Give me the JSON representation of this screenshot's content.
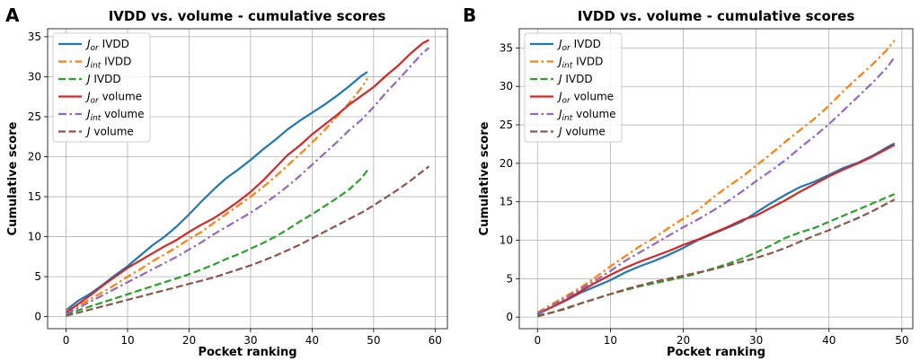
{
  "figure": {
    "panels": [
      "A",
      "B"
    ]
  },
  "chart_data": [
    {
      "panel": "A",
      "type": "line",
      "title": "IVDD vs. volume - cumulative scores",
      "xlabel": "Pocket ranking",
      "ylabel": "Cumulative score",
      "xlim": [
        -3,
        62
      ],
      "ylim": [
        -1.5,
        36
      ],
      "xticks": [
        0,
        10,
        20,
        30,
        40,
        50,
        60
      ],
      "yticks": [
        0,
        5,
        10,
        15,
        20,
        25,
        30,
        35
      ],
      "grid": true,
      "legend_position": "top-left",
      "series": [
        {
          "name": "J_or IVDD",
          "label_main": "J",
          "label_sub": "or",
          "label_rest": " IVDD",
          "color": "#1f77b4",
          "dash": "solid",
          "x": [
            0,
            2,
            4,
            6,
            8,
            10,
            12,
            14,
            16,
            18,
            20,
            22,
            24,
            26,
            28,
            30,
            32,
            34,
            36,
            38,
            40,
            42,
            44,
            46,
            48,
            49
          ],
          "y": [
            0.8,
            2.0,
            2.9,
            4.0,
            5.2,
            6.3,
            7.6,
            8.9,
            10.0,
            11.3,
            12.8,
            14.4,
            15.9,
            17.3,
            18.4,
            19.6,
            20.9,
            22.1,
            23.4,
            24.5,
            25.5,
            26.5,
            27.6,
            28.8,
            30.1,
            30.6
          ]
        },
        {
          "name": "J_int IVDD",
          "label_main": "J",
          "label_sub": "int",
          "label_rest": " IVDD",
          "color": "#ff7f0e",
          "dash": "dashdot",
          "x": [
            0,
            2,
            4,
            6,
            8,
            10,
            12,
            14,
            16,
            18,
            20,
            22,
            24,
            26,
            28,
            30,
            32,
            34,
            36,
            38,
            40,
            42,
            44,
            46,
            48,
            49
          ],
          "y": [
            0.7,
            1.4,
            2.2,
            3.1,
            4.0,
            5.0,
            5.9,
            6.9,
            7.8,
            8.7,
            9.7,
            10.6,
            11.7,
            12.8,
            13.9,
            15.0,
            16.2,
            17.5,
            18.9,
            20.3,
            21.8,
            23.3,
            25.0,
            26.7,
            28.6,
            29.8
          ]
        },
        {
          "name": "J IVDD",
          "label_main": "J",
          "label_sub": "",
          "label_rest": " IVDD",
          "color": "#2ca02c",
          "dash": "dashed",
          "x": [
            0,
            2,
            4,
            6,
            8,
            10,
            12,
            14,
            16,
            18,
            20,
            22,
            24,
            26,
            28,
            30,
            32,
            34,
            36,
            38,
            40,
            42,
            44,
            46,
            48,
            49
          ],
          "y": [
            0.3,
            0.8,
            1.3,
            1.8,
            2.3,
            2.8,
            3.3,
            3.8,
            4.3,
            4.8,
            5.3,
            5.9,
            6.5,
            7.2,
            7.8,
            8.5,
            9.2,
            10.0,
            10.9,
            11.9,
            12.8,
            13.8,
            14.8,
            15.9,
            17.3,
            18.3
          ]
        },
        {
          "name": "J_or volume",
          "label_main": "J",
          "label_sub": "or",
          "label_rest": " volume",
          "color": "#d62728",
          "dash": "solid",
          "x": [
            0,
            2,
            4,
            6,
            8,
            10,
            12,
            14,
            16,
            18,
            20,
            22,
            24,
            26,
            28,
            30,
            32,
            34,
            36,
            38,
            40,
            42,
            44,
            46,
            48,
            50,
            52,
            54,
            56,
            58,
            59
          ],
          "y": [
            0.5,
            1.6,
            2.7,
            3.9,
            5.0,
            6.1,
            7.0,
            7.9,
            8.8,
            9.6,
            10.6,
            11.5,
            12.3,
            13.3,
            14.4,
            15.6,
            17.0,
            18.6,
            20.2,
            21.4,
            22.8,
            24.0,
            25.2,
            26.5,
            27.6,
            28.7,
            30.1,
            31.4,
            32.9,
            34.2,
            34.6
          ]
        },
        {
          "name": "J_int volume",
          "label_main": "J",
          "label_sub": "int",
          "label_rest": " volume",
          "color": "#9467bd",
          "dash": "dashdot",
          "x": [
            0,
            2,
            4,
            6,
            8,
            10,
            12,
            14,
            16,
            18,
            20,
            22,
            24,
            26,
            28,
            30,
            32,
            34,
            36,
            38,
            40,
            42,
            44,
            46,
            48,
            50,
            52,
            54,
            56,
            58,
            59
          ],
          "y": [
            0.4,
            1.1,
            1.9,
            2.7,
            3.5,
            4.3,
            5.1,
            5.9,
            6.7,
            7.5,
            8.4,
            9.3,
            10.3,
            11.2,
            12.1,
            13.0,
            14.0,
            15.1,
            16.3,
            17.6,
            19.0,
            20.4,
            21.8,
            23.3,
            24.6,
            26.2,
            28.0,
            29.6,
            31.3,
            33.0,
            33.6
          ]
        },
        {
          "name": "J volume",
          "label_main": "J",
          "label_sub": "",
          "label_rest": " volume",
          "color": "#8c564b",
          "dash": "dashed",
          "x": [
            0,
            2,
            4,
            6,
            8,
            10,
            12,
            14,
            16,
            18,
            20,
            22,
            24,
            26,
            28,
            30,
            32,
            34,
            36,
            38,
            40,
            42,
            44,
            46,
            48,
            50,
            52,
            54,
            56,
            58,
            59
          ],
          "y": [
            0.1,
            0.5,
            0.9,
            1.3,
            1.7,
            2.1,
            2.5,
            2.9,
            3.3,
            3.7,
            4.1,
            4.5,
            4.9,
            5.4,
            5.9,
            6.4,
            7.0,
            7.6,
            8.3,
            9.0,
            9.8,
            10.6,
            11.4,
            12.2,
            13.0,
            13.9,
            14.9,
            15.9,
            17.0,
            18.2,
            18.8
          ]
        }
      ]
    },
    {
      "panel": "B",
      "type": "line",
      "title": "IVDD vs. volume - cumulative scores",
      "xlabel": "Pocket ranking",
      "ylabel": "Cumulative score",
      "xlim": [
        -2.5,
        51.5
      ],
      "ylim": [
        -1.5,
        37.5
      ],
      "xticks": [
        0,
        10,
        20,
        30,
        40,
        50
      ],
      "yticks": [
        0,
        5,
        10,
        15,
        20,
        25,
        30,
        35
      ],
      "grid": true,
      "legend_position": "top-left",
      "series": [
        {
          "name": "J_or IVDD",
          "label_main": "J",
          "label_sub": "or",
          "label_rest": " IVDD",
          "color": "#1f77b4",
          "dash": "solid",
          "x": [
            0,
            2,
            4,
            6,
            8,
            10,
            12,
            14,
            16,
            18,
            20,
            22,
            24,
            26,
            28,
            30,
            32,
            34,
            36,
            38,
            40,
            42,
            44,
            46,
            48,
            49
          ],
          "y": [
            0.4,
            1.3,
            2.2,
            3.2,
            4.0,
            4.8,
            5.8,
            6.6,
            7.3,
            8.1,
            9.0,
            10.0,
            10.8,
            11.6,
            12.4,
            13.6,
            14.8,
            15.9,
            16.9,
            17.6,
            18.5,
            19.4,
            20.1,
            21.0,
            22.1,
            22.6
          ]
        },
        {
          "name": "J_int IVDD",
          "label_main": "J",
          "label_sub": "int",
          "label_rest": " IVDD",
          "color": "#ff7f0e",
          "dash": "dashdot",
          "x": [
            0,
            2,
            4,
            6,
            8,
            10,
            12,
            14,
            16,
            18,
            20,
            22,
            24,
            26,
            28,
            30,
            32,
            34,
            36,
            38,
            40,
            42,
            44,
            46,
            48,
            49
          ],
          "y": [
            0.6,
            1.7,
            2.8,
            3.9,
            5.2,
            6.6,
            7.9,
            9.2,
            10.3,
            11.6,
            12.8,
            13.9,
            15.5,
            16.9,
            18.2,
            19.7,
            21.2,
            22.8,
            24.3,
            25.8,
            27.5,
            29.4,
            31.2,
            32.9,
            34.8,
            36.0
          ]
        },
        {
          "name": "J IVDD",
          "label_main": "J",
          "label_sub": "",
          "label_rest": " IVDD",
          "color": "#2ca02c",
          "dash": "dashed",
          "x": [
            0,
            2,
            4,
            6,
            8,
            10,
            12,
            14,
            16,
            18,
            20,
            22,
            24,
            26,
            28,
            30,
            32,
            34,
            36,
            38,
            40,
            42,
            44,
            46,
            48,
            49
          ],
          "y": [
            0.2,
            0.6,
            1.1,
            1.8,
            2.4,
            3.0,
            3.5,
            4.0,
            4.4,
            4.8,
            5.2,
            5.7,
            6.3,
            6.9,
            7.6,
            8.4,
            9.3,
            10.3,
            11.0,
            11.6,
            12.4,
            13.2,
            14.0,
            14.8,
            15.6,
            16.0
          ]
        },
        {
          "name": "J_or volume",
          "label_main": "J",
          "label_sub": "or",
          "label_rest": " volume",
          "color": "#d62728",
          "dash": "solid",
          "x": [
            0,
            2,
            4,
            6,
            8,
            10,
            12,
            14,
            16,
            18,
            20,
            22,
            24,
            26,
            28,
            30,
            32,
            34,
            36,
            38,
            40,
            42,
            44,
            46,
            48,
            49
          ],
          "y": [
            0.5,
            1.3,
            2.3,
            3.4,
            4.5,
            5.5,
            6.4,
            7.2,
            7.9,
            8.6,
            9.4,
            10.1,
            10.9,
            11.7,
            12.6,
            13.2,
            14.2,
            15.2,
            16.3,
            17.3,
            18.3,
            19.2,
            20.0,
            20.9,
            21.9,
            22.4
          ]
        },
        {
          "name": "J_int volume",
          "label_main": "J",
          "label_sub": "int",
          "label_rest": " volume",
          "color": "#9467bd",
          "dash": "dashdot",
          "x": [
            0,
            2,
            4,
            6,
            8,
            10,
            12,
            14,
            16,
            18,
            20,
            22,
            24,
            26,
            28,
            30,
            32,
            34,
            36,
            38,
            40,
            42,
            44,
            46,
            48,
            49
          ],
          "y": [
            0.5,
            1.5,
            2.6,
            3.7,
            4.8,
            6.0,
            7.3,
            8.4,
            9.5,
            10.6,
            11.7,
            12.7,
            13.8,
            15.0,
            16.3,
            17.7,
            19.0,
            20.4,
            22.0,
            23.5,
            25.1,
            26.9,
            28.7,
            30.5,
            32.5,
            33.8
          ]
        },
        {
          "name": "J volume",
          "label_main": "J",
          "label_sub": "",
          "label_rest": " volume",
          "color": "#8c564b",
          "dash": "dashed",
          "x": [
            0,
            2,
            4,
            6,
            8,
            10,
            12,
            14,
            16,
            18,
            20,
            22,
            24,
            26,
            28,
            30,
            32,
            34,
            36,
            38,
            40,
            42,
            44,
            46,
            48,
            49
          ],
          "y": [
            0.1,
            0.6,
            1.2,
            1.8,
            2.4,
            3.0,
            3.6,
            4.1,
            4.6,
            5.0,
            5.4,
            5.8,
            6.2,
            6.7,
            7.2,
            7.7,
            8.3,
            9.0,
            9.8,
            10.6,
            11.3,
            12.1,
            12.9,
            13.8,
            14.8,
            15.3
          ]
        }
      ]
    }
  ]
}
